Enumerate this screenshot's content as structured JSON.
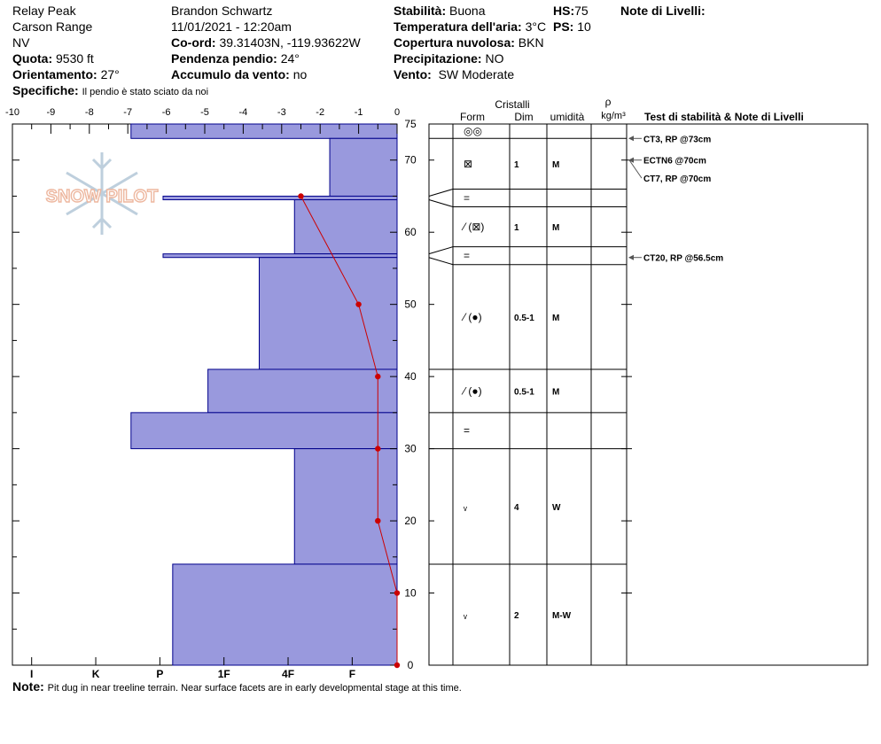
{
  "header": {
    "location": "Relay Peak",
    "range": "Carson Range",
    "state": "NV",
    "elevation_label": "Quota:",
    "elevation": "9530 ft",
    "aspect_label": "Orientamento:",
    "aspect": "27°",
    "specifics_label": "Specifiche:",
    "specifics": "Il pendio è stato sciato da noi",
    "observer": "Brandon Schwartz",
    "datetime": "11/01/2021 - 12:20am",
    "coord_label": "Co-ord:",
    "coord": "39.31403N, -119.93622W",
    "slope_label": "Pendenza pendio:",
    "slope": "24°",
    "wind_loading_label": "Accumulo da vento:",
    "wind_loading": "no",
    "stability_label": "Stabilità:",
    "stability": "Buona",
    "air_temp_label": "Temperatura dell'aria:",
    "air_temp": "3°C",
    "cloud_label": "Copertura nuvolosa:",
    "cloud": "BKN",
    "precip_label": "Precipitazione:",
    "precip": "NO",
    "wind_label": "Vento:",
    "wind": "SW Moderate",
    "hs_label": "HS:",
    "hs": "75",
    "ps_label": "PS:",
    "ps": "10",
    "layer_notes_label": "Note di Livelli:"
  },
  "table_headers": {
    "crystals": "Cristalli",
    "form": "Form",
    "size": "Dim",
    "moisture": "umidità",
    "rho": "ρ",
    "density_unit": "kg/m³",
    "tests": "Test di stabilità & Note di Livelli"
  },
  "note_label": "Note:",
  "note_text": "Pit dug in near treeline terrain. Near surface facets are in early developmental stage at this time.",
  "logo_text": "SNOW PILOT",
  "colors": {
    "hardness_fill": "#9999dd",
    "hardness_stroke": "#00008b",
    "temp_line": "#cc0000",
    "arrow": "#555555"
  },
  "chart_data": {
    "type": "snow-profile",
    "temperature_axis": {
      "ticks": [
        -10,
        -9,
        -8,
        -7,
        -6,
        -5,
        -4,
        -3,
        -2,
        -1,
        0
      ],
      "range": [
        -10,
        0
      ]
    },
    "hardness_axis": {
      "ticks": [
        "I",
        "K",
        "P",
        "1F",
        "4F",
        "F"
      ],
      "range_index": [
        -0.3,
        5.7
      ]
    },
    "depth_axis": {
      "ticks": [
        0,
        10,
        20,
        30,
        40,
        50,
        60,
        70,
        75
      ],
      "range": [
        0,
        75
      ]
    },
    "hardness_layers": [
      {
        "top": 75,
        "bottom": 73,
        "hardness_index": 1.55
      },
      {
        "top": 73,
        "bottom": 65,
        "hardness_index": 4.65
      },
      {
        "top": 65,
        "bottom": 64.5,
        "hardness_index": 2.05
      },
      {
        "top": 64.5,
        "bottom": 57,
        "hardness_index": 4.1
      },
      {
        "top": 57,
        "bottom": 56.5,
        "hardness_index": 2.05
      },
      {
        "top": 56.5,
        "bottom": 41,
        "hardness_index": 3.55
      },
      {
        "top": 41,
        "bottom": 35,
        "hardness_index": 2.75
      },
      {
        "top": 35,
        "bottom": 30,
        "hardness_index": 1.55
      },
      {
        "top": 30,
        "bottom": 14,
        "hardness_index": 4.1
      },
      {
        "top": 14,
        "bottom": 0,
        "hardness_index": 2.2
      }
    ],
    "temperature_profile": [
      {
        "depth": 65,
        "temp": -2.5
      },
      {
        "depth": 50,
        "temp": -1.0
      },
      {
        "depth": 40,
        "temp": -0.5
      },
      {
        "depth": 30,
        "temp": -0.5
      },
      {
        "depth": 20,
        "temp": -0.5
      },
      {
        "depth": 10,
        "temp": 0.0
      },
      {
        "depth": 0,
        "temp": 0.0
      }
    ],
    "layer_rows": [
      {
        "top": 75,
        "bottom": 73,
        "form": "◎◎",
        "size": "",
        "moisture": ""
      },
      {
        "top": 73,
        "bottom": 65,
        "form": "⊠",
        "size": "1",
        "moisture": "M"
      },
      {
        "top": 65,
        "bottom": 64.5,
        "form": "=",
        "size": "",
        "moisture": ""
      },
      {
        "top": 64.5,
        "bottom": 57,
        "form": "⁄ (⊠)",
        "size": "1",
        "moisture": "M"
      },
      {
        "top": 57,
        "bottom": 56.5,
        "form": "=",
        "size": "",
        "moisture": ""
      },
      {
        "top": 56.5,
        "bottom": 41,
        "form": "⁄ (●)",
        "size": "0.5-1",
        "moisture": "M"
      },
      {
        "top": 41,
        "bottom": 35,
        "form": "⁄ (●)",
        "size": "0.5-1",
        "moisture": "M"
      },
      {
        "top": 35,
        "bottom": 30,
        "form": "=",
        "size": "",
        "moisture": ""
      },
      {
        "top": 30,
        "bottom": 14,
        "form": "ᵥ",
        "size": "4",
        "moisture": "W"
      },
      {
        "top": 14,
        "bottom": 0,
        "form": "ᵥ",
        "size": "2",
        "moisture": "M-W"
      }
    ],
    "stability_tests": [
      {
        "label": "CT3, RP @73cm",
        "depth": 73,
        "label_depth": 73
      },
      {
        "label": "ECTN6 @70cm",
        "depth": 70,
        "label_depth": 70
      },
      {
        "label": "CT7, RP @70cm",
        "depth": 70,
        "label_depth": 67.5
      },
      {
        "label": "CT20, RP @56.5cm",
        "depth": 56.5,
        "label_depth": 56.5
      }
    ]
  }
}
